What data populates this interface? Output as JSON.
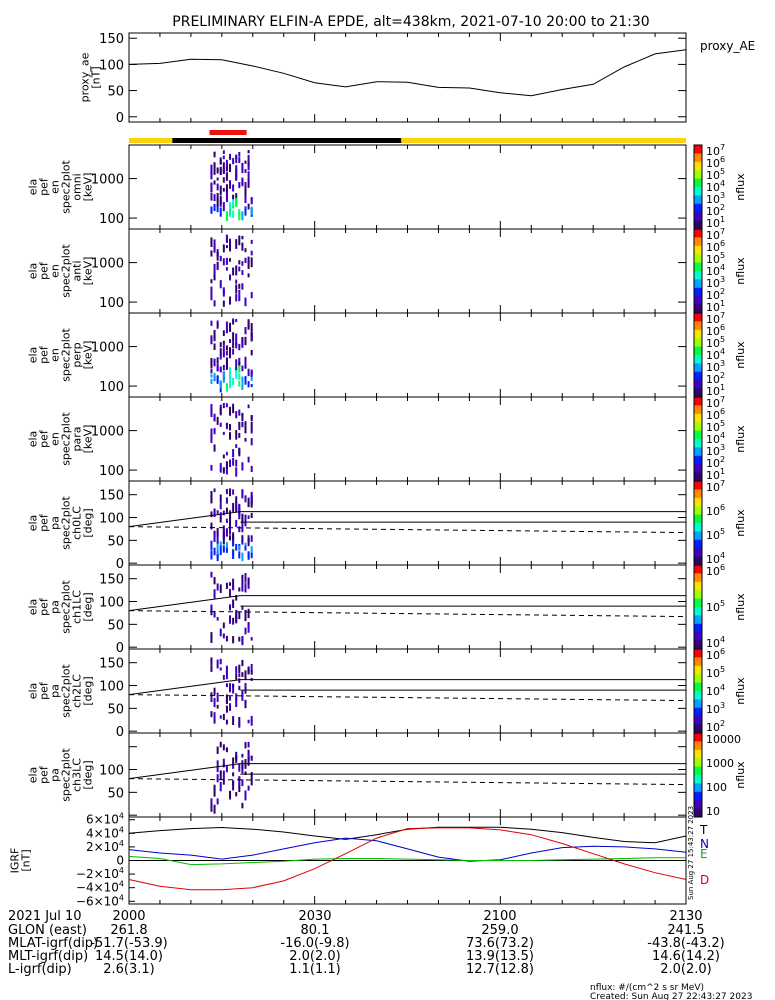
{
  "title": "PRELIMINARY ELFIN-A EPDE, alt=438km, 2021-07-10 20:00 to 21:30",
  "chart_data": [
    {
      "type": "line",
      "panel": "proxy_ae",
      "ylabel": [
        "proxy_ae",
        "[nT]"
      ],
      "legend": "proxy_AE",
      "ylim": [
        -10,
        160
      ],
      "yticks": [
        "150",
        "100",
        "50",
        "0"
      ],
      "yticks_values": [
        150,
        100,
        50,
        0
      ],
      "series": [
        {
          "x": [
            "20:00",
            "20:05",
            "20:10",
            "20:15",
            "20:20",
            "20:25",
            "20:30",
            "20:35",
            "20:40",
            "20:45",
            "20:50",
            "20:55",
            "21:00",
            "21:05",
            "21:10",
            "21:15",
            "21:20",
            "21:25",
            "21:30"
          ],
          "values": [
            100,
            102,
            110,
            109,
            97,
            83,
            65,
            57,
            67,
            66,
            56,
            55,
            46,
            40,
            52,
            62,
            95,
            120,
            128
          ]
        }
      ]
    },
    {
      "type": "timeline",
      "panel": "spin-phase bar",
      "segments": [
        {
          "from": "20:00",
          "to": "20:07",
          "color": "#ffd200"
        },
        {
          "from": "20:07",
          "to": "20:44",
          "color": "#000000"
        },
        {
          "from": "20:44",
          "to": "21:30",
          "color": "#ffd200"
        }
      ],
      "science_zone": {
        "from": "20:13",
        "to": "20:19",
        "color": "#ee1111"
      }
    },
    {
      "type": "heatmap",
      "panel": "omni",
      "ylabel": [
        "ela",
        "pef",
        "en",
        "spec2plot",
        "omni",
        "[keV]"
      ],
      "yticks": [
        "1000",
        "100"
      ],
      "colorbar_label": "nflux",
      "colorbar_ticks": [
        "10",
        "10",
        "10",
        "10",
        "10",
        "10",
        "10"
      ],
      "colorbar_exponents": [
        "7",
        "6",
        "5",
        "4",
        "3",
        "2",
        "1"
      ]
    },
    {
      "type": "heatmap",
      "panel": "anti",
      "ylabel": [
        "ela",
        "pef",
        "en",
        "spec2plot",
        "anti",
        "[keV]"
      ],
      "yticks": [
        "1000",
        "100"
      ],
      "colorbar_label": "nflux",
      "colorbar_ticks": [
        "10",
        "10",
        "10",
        "10",
        "10",
        "10",
        "10"
      ],
      "colorbar_exponents": [
        "7",
        "6",
        "5",
        "4",
        "3",
        "2",
        "1"
      ]
    },
    {
      "type": "heatmap",
      "panel": "perp",
      "ylabel": [
        "ela",
        "pef",
        "en",
        "spec2plot",
        "perp",
        "[keV]"
      ],
      "yticks": [
        "1000",
        "100"
      ],
      "colorbar_label": "nflux",
      "colorbar_ticks": [
        "10",
        "10",
        "10",
        "10",
        "10",
        "10",
        "10"
      ],
      "colorbar_exponents": [
        "7",
        "6",
        "5",
        "4",
        "3",
        "2",
        "1"
      ]
    },
    {
      "type": "heatmap",
      "panel": "para",
      "ylabel": [
        "ela",
        "pef",
        "en",
        "spec2plot",
        "para",
        "[keV]"
      ],
      "yticks": [
        "1000",
        "100"
      ],
      "colorbar_label": "nflux",
      "colorbar_ticks": [
        "10",
        "10",
        "10",
        "10",
        "10",
        "10",
        "10"
      ],
      "colorbar_exponents": [
        "7",
        "6",
        "5",
        "4",
        "3",
        "2",
        "1"
      ]
    },
    {
      "type": "heatmap",
      "panel": "ch0LC",
      "ylabel": [
        "ela",
        "pef",
        "pa",
        "spec2plot",
        "ch0LC",
        "[deg]"
      ],
      "yticks": [
        "150",
        "100",
        "50",
        "0"
      ],
      "colorbar_label": "nflux",
      "colorbar_ticks": [
        "10",
        "10",
        "10",
        "10"
      ],
      "colorbar_exponents": [
        "7",
        "6",
        "5",
        "4"
      ],
      "lines": {
        "horizontal": [
          113,
          90
        ],
        "dashed_from": 80,
        "dashed_to": 67,
        "solid_from": 80,
        "solid_to": 113
      }
    },
    {
      "type": "heatmap",
      "panel": "ch1LC",
      "ylabel": [
        "ela",
        "pef",
        "pa",
        "spec2plot",
        "ch1LC",
        "[deg]"
      ],
      "yticks": [
        "150",
        "100",
        "50",
        "0"
      ],
      "colorbar_label": "nflux",
      "colorbar_ticks": [
        "10",
        "10",
        "10"
      ],
      "colorbar_exponents": [
        "6",
        "5",
        "4"
      ],
      "lines": {
        "horizontal": [
          113,
          90
        ],
        "dashed_from": 80,
        "dashed_to": 67,
        "solid_from": 80,
        "solid_to": 113
      }
    },
    {
      "type": "heatmap",
      "panel": "ch2LC",
      "ylabel": [
        "ela",
        "pef",
        "pa",
        "spec2plot",
        "ch2LC",
        "[deg]"
      ],
      "yticks": [
        "150",
        "100",
        "50",
        "0"
      ],
      "colorbar_label": "nflux",
      "colorbar_ticks": [
        "10",
        "10",
        "10",
        "10",
        "10"
      ],
      "colorbar_exponents": [
        "6",
        "5",
        "4",
        "3",
        "2"
      ],
      "lines": {
        "horizontal": [
          113,
          90
        ],
        "dashed_from": 80,
        "dashed_to": 67,
        "solid_from": 80,
        "solid_to": 113
      }
    },
    {
      "type": "heatmap",
      "panel": "ch3LC",
      "ylabel": [
        "ela",
        "pef",
        "pa",
        "spec2plot",
        "ch3LC",
        "[deg]"
      ],
      "yticks": [
        "100",
        "50"
      ],
      "colorbar_label": "nflux",
      "colorbar_ticks": [
        "10000",
        "1000",
        "100",
        "10"
      ],
      "colorbar_exponents": [
        "",
        "",
        "",
        ""
      ],
      "lines": {
        "horizontal": [
          113,
          90
        ],
        "dashed_from": 80,
        "dashed_to": 67,
        "solid_from": 80,
        "solid_to": 113
      }
    },
    {
      "type": "line",
      "panel": "IGRF",
      "ylabel": [
        "IGRF",
        "[nT]"
      ],
      "ylim": [
        -64000,
        64000
      ],
      "yticks": [
        "6×10",
        "4×10",
        "2×10",
        "0",
        "−2×10",
        "−4×10",
        "−6×10"
      ],
      "ytick_exponents": [
        "4",
        "4",
        "4",
        "",
        "4",
        "4",
        "4"
      ],
      "yticks_values": [
        60000,
        40000,
        20000,
        0,
        -20000,
        -40000,
        -60000
      ],
      "x": [
        "20:00",
        "20:05",
        "20:10",
        "20:15",
        "20:20",
        "20:25",
        "20:30",
        "20:35",
        "20:40",
        "20:45",
        "20:50",
        "20:55",
        "21:00",
        "21:05",
        "21:10",
        "21:15",
        "21:20",
        "21:25",
        "21:30"
      ],
      "series": [
        {
          "name": "T",
          "color": "#000000",
          "values": [
            40000,
            44000,
            47000,
            48500,
            46000,
            42000,
            36000,
            31000,
            38000,
            46000,
            49000,
            49000,
            49000,
            46000,
            41000,
            34000,
            28000,
            26000,
            36000
          ]
        },
        {
          "name": "N",
          "color": "#0000cc",
          "values": [
            16000,
            11000,
            8000,
            2000,
            8000,
            17000,
            26000,
            33000,
            29000,
            17000,
            5000,
            -1000,
            1000,
            11000,
            19000,
            21000,
            20000,
            17000,
            12000
          ]
        },
        {
          "name": "E",
          "color": "#00bb00",
          "values": [
            6000,
            3000,
            -6000,
            -5000,
            -3000,
            -1000,
            2000,
            3000,
            3000,
            2000,
            1000,
            0,
            0,
            0,
            1000,
            2000,
            3000,
            4000,
            4000
          ]
        },
        {
          "name": "D",
          "color": "#dd0000",
          "values": [
            -28000,
            -38000,
            -43000,
            -43000,
            -40000,
            -30000,
            -12000,
            10000,
            33000,
            47000,
            48000,
            48000,
            45000,
            38000,
            25000,
            10000,
            -5000,
            -18000,
            -28000
          ]
        }
      ]
    }
  ],
  "orbit_table": {
    "header": {
      "label": "2021 Jul 10",
      "ticks": [
        "2000",
        "2030",
        "2100",
        "2130"
      ]
    },
    "rows": [
      {
        "label": "GLON (east)",
        "values": [
          "261.8",
          "80.1",
          "259.0",
          "241.5"
        ]
      },
      {
        "label": "MLAT-igrf(dip)",
        "values": [
          "-51.7(-53.9)",
          "-16.0(-9.8)",
          "73.6(73.2)",
          "-43.8(-43.2)"
        ]
      },
      {
        "label": "MLT-igrf(dip)",
        "values": [
          "14.5(14.0)",
          "2.0(2.0)",
          "13.9(13.5)",
          "14.6(14.2)"
        ]
      },
      {
        "label": "L-igrf(dip)",
        "values": [
          "2.6(3.1)",
          "1.1(1.1)",
          "12.7(12.8)",
          "2.0(2.0)"
        ]
      }
    ]
  },
  "footer": {
    "units": "nflux: #/(cm^2 s sr MeV)",
    "created": "Created: Sun Aug 27 22:43:27 2023",
    "side_stamp": "Sun Aug 27 15:43:27 2023"
  },
  "colors": {
    "yellow": "#ffd200",
    "red": "#ee1111",
    "colorbar": [
      "#ff0000",
      "#ff8800",
      "#ffe000",
      "#a0ff00",
      "#00ff40",
      "#00ffd0",
      "#00a0ff",
      "#0020ff",
      "#4000c0",
      "#300070"
    ]
  }
}
